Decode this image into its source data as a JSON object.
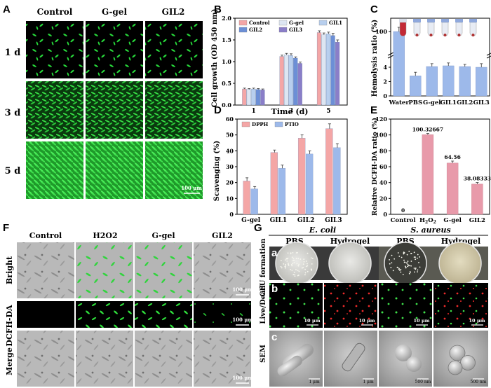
{
  "panels": {
    "A": {
      "letter": "A",
      "columns": [
        "Control",
        "G-gel",
        "GIL2"
      ],
      "rows": [
        "1 d",
        "3 d",
        "5 d"
      ],
      "scalebar": "100 μm"
    },
    "B": {
      "letter": "B",
      "chart_data": {
        "type": "bar",
        "categories": [
          "1",
          "3",
          "5"
        ],
        "xlabel": "Time (d)",
        "ylabel": "Cell growth (OD 450 nm)",
        "ylim": [
          0.0,
          2.0
        ],
        "yticks": [
          "0.0",
          "0.5",
          "1.0",
          "1.5",
          "2.0"
        ],
        "legend": "top-left",
        "series": [
          {
            "name": "Control",
            "values": [
              0.37,
              1.12,
              1.67
            ],
            "errors": [
              0.02,
              0.03,
              0.04
            ],
            "color": "#f4a6a6"
          },
          {
            "name": "G-gel",
            "values": [
              0.36,
              1.16,
              1.62
            ],
            "errors": [
              0.02,
              0.03,
              0.04
            ],
            "color": "#dde6f2"
          },
          {
            "name": "GIL1",
            "values": [
              0.37,
              1.14,
              1.64
            ],
            "errors": [
              0.02,
              0.04,
              0.04
            ],
            "color": "#b8cfee"
          },
          {
            "name": "GIL2",
            "values": [
              0.36,
              1.08,
              1.6
            ],
            "errors": [
              0.02,
              0.03,
              0.05
            ],
            "color": "#6c8fd6"
          },
          {
            "name": "GIL3",
            "values": [
              0.35,
              0.96,
              1.45
            ],
            "errors": [
              0.02,
              0.03,
              0.05
            ],
            "color": "#8a7ec8"
          }
        ]
      }
    },
    "C": {
      "letter": "C",
      "chart_data": {
        "type": "bar",
        "categories": [
          "Water",
          "PBS",
          "G-gel",
          "GIL1",
          "GIL2",
          "GIL3"
        ],
        "ylabel": "Hemolysis ratio (%)",
        "yticks": [
          "100",
          "4",
          "2",
          "0"
        ],
        "broken_axis": true,
        "series": [
          {
            "values": [
              100,
              2.8,
              4.1,
              4.2,
              4.1,
              4.0
            ],
            "errors": [
              6,
              0.5,
              0.4,
              0.4,
              0.3,
              0.5
            ],
            "color": "#9db9ea"
          }
        ]
      }
    },
    "D": {
      "letter": "D",
      "chart_data": {
        "type": "bar",
        "categories": [
          "G-gel",
          "GIL1",
          "GIL2",
          "GIL3"
        ],
        "ylabel": "Scavenging (%)",
        "ylim": [
          0,
          60
        ],
        "yticks": [
          "0",
          "10",
          "20",
          "30",
          "40",
          "50",
          "60"
        ],
        "legend": "top-left",
        "series": [
          {
            "name": "DPPH",
            "values": [
              21,
              39,
              48,
              54
            ],
            "errors": [
              2,
              1.5,
              2,
              3
            ],
            "color": "#f4a6a6"
          },
          {
            "name": "PTIO",
            "values": [
              16,
              29,
              38,
              42
            ],
            "errors": [
              1.5,
              2,
              2,
              2.5
            ],
            "color": "#9db9ea"
          }
        ]
      }
    },
    "E": {
      "letter": "E",
      "chart_data": {
        "type": "bar",
        "categories": [
          "Control",
          "H2O2",
          "G-gel",
          "GIL2"
        ],
        "ylabel": "Relative DCFH-DA ratio (%)",
        "ylim": [
          0,
          120
        ],
        "yticks": [
          "0",
          "20",
          "40",
          "60",
          "80",
          "100",
          "120"
        ],
        "series": [
          {
            "values": [
              0,
              100.32667,
              64.56,
              38.08333
            ],
            "errors": [
              0,
              1.5,
              2.5,
              2
            ],
            "color": "#e89aaa"
          }
        ],
        "value_labels": [
          "0",
          "100.32667",
          "64.56",
          "38.08333"
        ]
      }
    },
    "F": {
      "letter": "F",
      "columns": [
        "Control",
        "H2O2",
        "G-gel",
        "GIL2"
      ],
      "rows": [
        "Bright",
        "DCFH-DA",
        "Merge"
      ],
      "scalebar": "100 μm"
    },
    "G": {
      "letter": "G",
      "organisms": [
        "E. coli",
        "S. aureus"
      ],
      "columns": [
        "PBS",
        "Hydrogel",
        "PBS",
        "Hydrogel"
      ],
      "rows": [
        "CFU formation",
        "Live/Dead",
        "SEM"
      ],
      "sub": [
        "a",
        "b",
        "c"
      ],
      "live_scalebar": "10 μm",
      "sem_scalebars": [
        "1 μm",
        "1 μm",
        "500 nm",
        "500 nm"
      ]
    }
  }
}
